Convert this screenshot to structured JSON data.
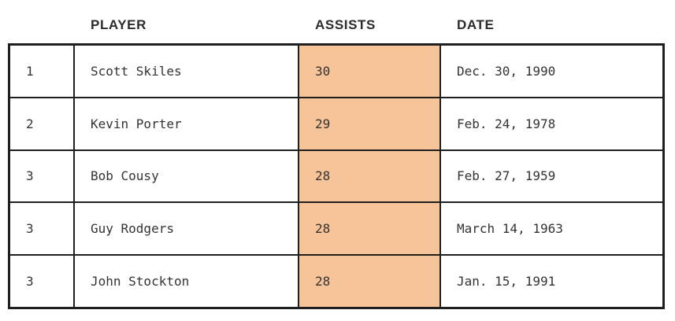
{
  "colors": {
    "accent": "#F6C498",
    "border": "#1F1F1F",
    "header_text": "#2B2B2B",
    "body_text": "#333333",
    "background": "#FFFFFF"
  },
  "table": {
    "columns": [
      {
        "key": "rank",
        "label": ""
      },
      {
        "key": "player",
        "label": "PLAYER"
      },
      {
        "key": "assists",
        "label": "ASSISTS"
      },
      {
        "key": "date",
        "label": "DATE"
      }
    ],
    "rows": [
      {
        "rank": "1",
        "player": "Scott Skiles",
        "assists": "30",
        "date": "Dec. 30, 1990"
      },
      {
        "rank": "2",
        "player": "Kevin Porter",
        "assists": "29",
        "date": "Feb. 24, 1978"
      },
      {
        "rank": "3",
        "player": "Bob Cousy",
        "assists": "28",
        "date": "Feb. 27, 1959"
      },
      {
        "rank": "3",
        "player": "Guy Rodgers",
        "assists": "28",
        "date": "March 14, 1963"
      },
      {
        "rank": "3",
        "player": "John Stockton",
        "assists": "28",
        "date": "Jan. 15, 1991"
      }
    ]
  },
  "chart_data": {
    "type": "table",
    "title": "",
    "columns": [
      "",
      "PLAYER",
      "ASSISTS",
      "DATE"
    ],
    "highlighted_column": "ASSISTS",
    "rows": [
      [
        "1",
        "Scott Skiles",
        30,
        "Dec. 30, 1990"
      ],
      [
        "2",
        "Kevin Porter",
        29,
        "Feb. 24, 1978"
      ],
      [
        "3",
        "Bob Cousy",
        28,
        "Feb. 27, 1959"
      ],
      [
        "3",
        "Guy Rodgers",
        28,
        "March 14, 1963"
      ],
      [
        "3",
        "John Stockton",
        28,
        "Jan. 15, 1991"
      ]
    ]
  }
}
